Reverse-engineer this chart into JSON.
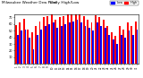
{
  "title": "Milwaukee Weather Dew Point",
  "subtitle": "Daily High/Low",
  "background_color": "#ffffff",
  "bar_color_high": "#ff0000",
  "bar_color_low": "#0000ff",
  "legend_high": "High",
  "legend_low": "Low",
  "ylim": [
    0,
    75
  ],
  "yticks": [
    10,
    20,
    30,
    40,
    50,
    60,
    70
  ],
  "days": 31,
  "highs": [
    58,
    62,
    68,
    52,
    48,
    57,
    64,
    70,
    72,
    74,
    67,
    70,
    72,
    74,
    76,
    78,
    74,
    72,
    67,
    62,
    73,
    70,
    67,
    57,
    47,
    42,
    57,
    52,
    62,
    57,
    64
  ],
  "lows": [
    44,
    50,
    52,
    40,
    22,
    44,
    52,
    57,
    60,
    62,
    54,
    57,
    60,
    62,
    64,
    67,
    62,
    57,
    54,
    50,
    62,
    57,
    54,
    44,
    37,
    30,
    44,
    40,
    50,
    44,
    52
  ],
  "dashed_line_x": 19.5,
  "figsize": [
    1.6,
    0.87
  ],
  "dpi": 100
}
